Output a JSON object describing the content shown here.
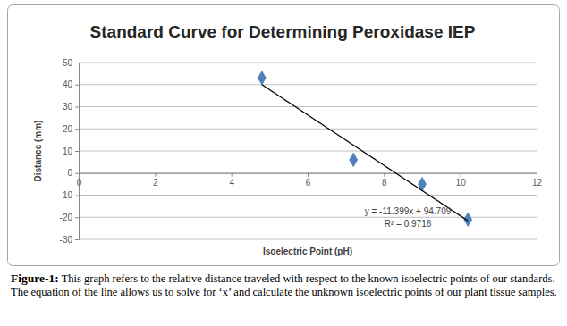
{
  "chart_data": {
    "type": "scatter",
    "title": "Standard Curve for Determining Peroxidase IEP",
    "x_label": "Isoelectric Point (pH)",
    "y_label": "Distance (mm)",
    "series": [
      {
        "type": "scatter",
        "color": "#4f81bd",
        "marker": "diamond",
        "x": [
          4.8,
          7.2,
          9.0,
          10.2
        ],
        "values": [
          43,
          6,
          -5,
          -21
        ]
      },
      {
        "type": "line",
        "color": "#000000",
        "line_style": "solid",
        "x": [
          4.8,
          10.2
        ],
        "values": [
          40.0,
          -21.6
        ]
      }
    ],
    "annotations": [
      "y = -11.399x + 94.709",
      "R² = 0.9716"
    ],
    "xlim": [
      0,
      12
    ],
    "xticks": [
      0,
      2,
      4,
      6,
      8,
      10,
      12
    ],
    "ylim": [
      -30,
      50
    ],
    "yticks": [
      -30,
      -20,
      -10,
      0,
      10,
      20,
      30,
      40,
      50
    ],
    "grid": true,
    "caption_label": "Figure-1:",
    "caption": "This graph refers to the relative distance traveled with respect to the known isoelectric points of our standards. The equation of the line allows us to solve for ‘x’ and calculate the unknown isoelectric points of our plant tissue samples."
  }
}
